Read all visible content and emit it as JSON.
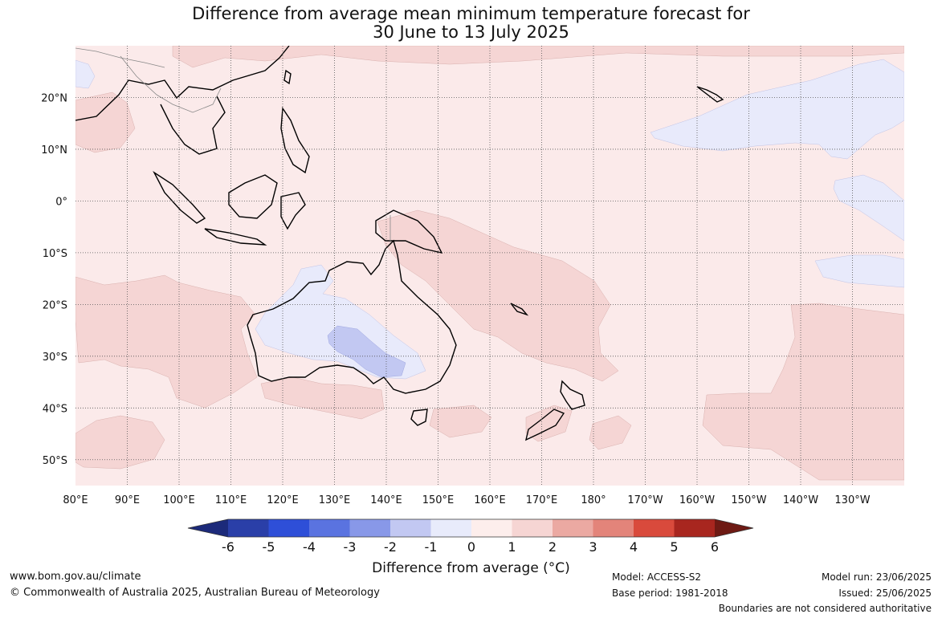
{
  "title": {
    "line1": "Difference from average mean minimum temperature forecast for",
    "line2": "30 June to 13 July 2025"
  },
  "map": {
    "lon_labels": [
      "80°E",
      "90°E",
      "100°E",
      "110°E",
      "120°E",
      "130°E",
      "140°E",
      "150°E",
      "160°E",
      "170°E",
      "180°",
      "170°W",
      "160°W",
      "150°W",
      "140°W",
      "130°W"
    ],
    "lat_labels": [
      "20°N",
      "10°N",
      "0°",
      "10°S",
      "20°S",
      "30°S",
      "40°S",
      "50°S"
    ],
    "lon_range": [
      80,
      240
    ],
    "lat_range": [
      -55,
      30
    ],
    "grid": true
  },
  "legend": {
    "ticks": [
      "-6",
      "-5",
      "-4",
      "-3",
      "-2",
      "-1",
      "0",
      "1",
      "2",
      "3",
      "4",
      "5",
      "6"
    ],
    "colors": [
      "#1c2a7a",
      "#2a3fa8",
      "#2e4fd8",
      "#5a73e0",
      "#8898e8",
      "#c2c8f2",
      "#e8ebfb",
      "#fdeeec",
      "#f6d5d3",
      "#eba9a2",
      "#e3847a",
      "#d94a3c",
      "#a8261f",
      "#6e1a14"
    ],
    "title": "Difference from average (°C)"
  },
  "footer": {
    "url": "www.bom.gov.au/climate",
    "copyright": "© Commonwealth of Australia 2025, Australian Bureau of Meteorology",
    "model": "Model: ACCESS-S2",
    "base_period": "Base period: 1981-2018",
    "model_run": "Model run: 23/06/2025",
    "issued": "Issued: 25/06/2025",
    "disclaimer": "Boundaries are not considered authoritative"
  }
}
